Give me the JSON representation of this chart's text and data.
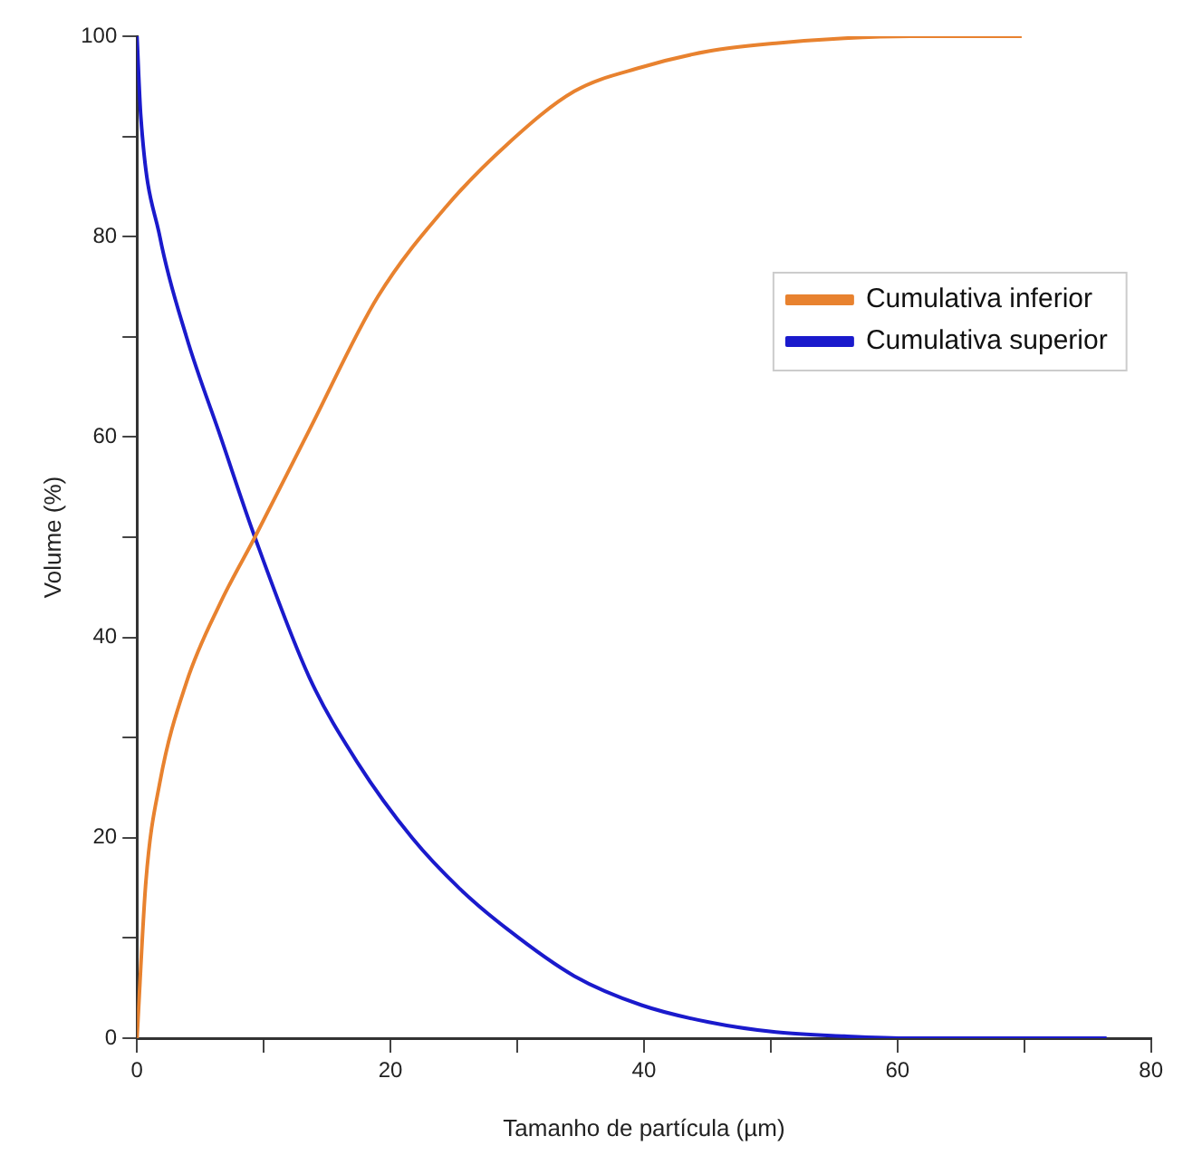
{
  "chart_data": {
    "type": "line",
    "xlabel": "Tamanho de partícula (µm)",
    "ylabel": "Volume (%)",
    "xlim": [
      0,
      80
    ],
    "xticks": [
      0,
      {
        "value": 10,
        "label": null
      },
      20,
      {
        "value": 30,
        "label": null
      },
      40,
      {
        "value": 50,
        "label": null
      },
      60,
      {
        "value": 70,
        "label": null
      },
      80
    ],
    "ylim": [
      0,
      100
    ],
    "yticks": [
      0,
      {
        "value": 10,
        "label": null
      },
      20,
      {
        "value": 30,
        "label": null
      },
      40,
      {
        "value": 50,
        "label": null
      },
      60,
      {
        "value": 70,
        "label": null
      },
      80,
      {
        "value": 90,
        "label": null
      },
      100
    ],
    "grid": false,
    "legend": "top right",
    "marker": "none",
    "line_style": "solid",
    "series": [
      {
        "name": "Cumulativa inferior",
        "color": "#e8822f",
        "x": [
          0,
          0.7,
          1.8,
          3.9,
          6.6,
          9.3,
          13.6,
          19,
          24.4,
          29.2,
          34.5,
          39.8,
          45.1,
          50.4,
          55.8,
          61,
          69.8
        ],
        "values": [
          0,
          15.6,
          25.5,
          35.5,
          43.5,
          50,
          60.7,
          74,
          83,
          89.2,
          94.5,
          96.9,
          98.5,
          99.3,
          99.8,
          100,
          100
        ]
      },
      {
        "name": "Cumulativa superior",
        "color": "#1a1acc",
        "x": [
          0,
          0.3,
          1.8,
          3.9,
          6.6,
          9.3,
          13.6,
          17.4,
          21.7,
          25.4,
          29.2,
          34.5,
          39.8,
          45.1,
          50.4,
          55.8,
          61,
          76.5
        ],
        "values": [
          100,
          92,
          80,
          70,
          60,
          50,
          36,
          27.5,
          20,
          15,
          10.9,
          6.2,
          3.3,
          1.6,
          0.6,
          0.2,
          0,
          0
        ]
      }
    ]
  }
}
